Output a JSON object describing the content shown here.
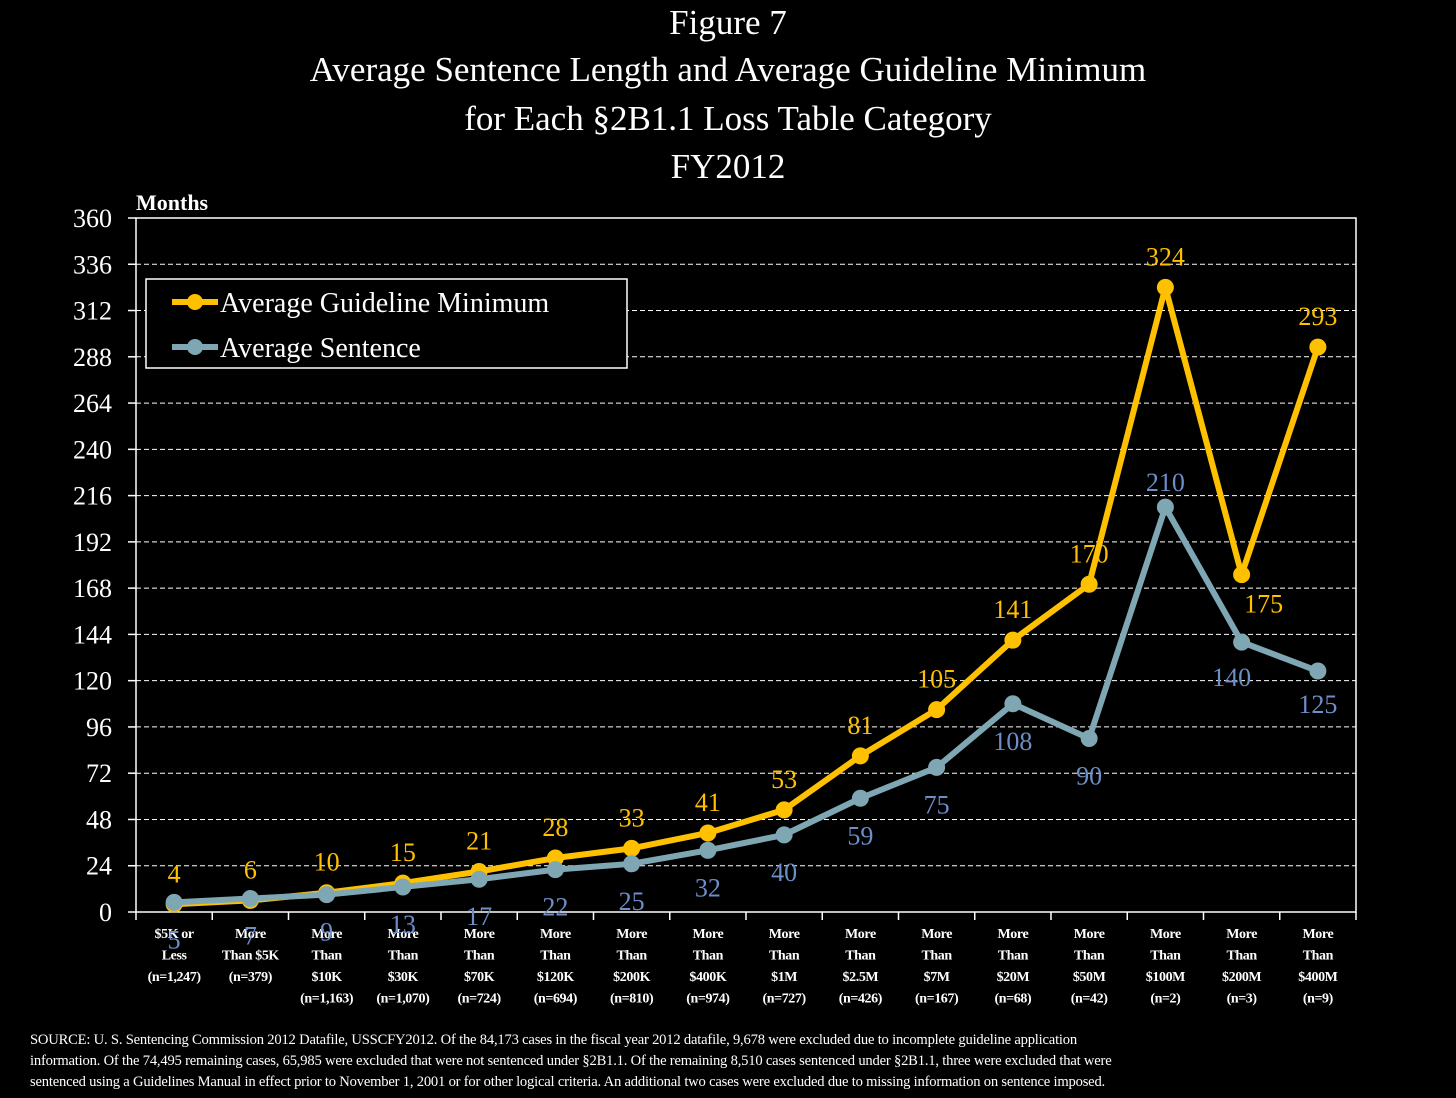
{
  "figure": {
    "title_lines": [
      "Figure 7",
      "Average Sentence Length and Average Guideline Minimum",
      "for Each §2B1.1 Loss Table Category",
      "FY2012"
    ],
    "source_lines": [
      "SOURCE:  U. S. Sentencing Commission 2012 Datafile, USSCFY2012.   Of the 84,173 cases in the fiscal year 2012 datafile, 9,678 were excluded due to incomplete guideline application",
      "information.  Of the 74,495 remaining cases, 65,985 were excluded that were not sentenced under §2B1.1.  Of the remaining 8,510 cases sentenced under §2B1.1, three were excluded that were",
      "sentenced using a Guidelines Manual in effect prior to November 1, 2001 or for other logical criteria.  An additional two cases were excluded due to missing information on sentence imposed."
    ]
  },
  "chart_data": {
    "type": "line",
    "title": "Average Sentence Length and Average Guideline Minimum for Each §2B1.1 Loss Table Category FY2012",
    "ylabel": "Months",
    "xlabel": "",
    "ylim": [
      0,
      360
    ],
    "yticks": [
      0,
      24,
      48,
      72,
      96,
      120,
      144,
      168,
      192,
      216,
      240,
      264,
      288,
      312,
      336,
      360
    ],
    "grid": "horizontal-dashed",
    "legend_position": "top-left",
    "categories": [
      [
        "$5K or",
        "Less",
        "(n=1,247)"
      ],
      [
        "More",
        "Than $5K",
        "(n=379)"
      ],
      [
        "More",
        "Than",
        "$10K",
        "(n=1,163)"
      ],
      [
        "More",
        "Than",
        "$30K",
        "(n=1,070)"
      ],
      [
        "More",
        "Than",
        "$70K",
        "(n=724)"
      ],
      [
        "More",
        "Than",
        "$120K",
        "(n=694)"
      ],
      [
        "More",
        "Than",
        "$200K",
        "(n=810)"
      ],
      [
        "More",
        "Than",
        "$400K",
        "(n=974)"
      ],
      [
        "More",
        "Than",
        "$1M",
        "(n=727)"
      ],
      [
        "More",
        "Than",
        "$2.5M",
        "(n=426)"
      ],
      [
        "More",
        "Than",
        "$7M",
        "(n=167)"
      ],
      [
        "More",
        "Than",
        "$20M",
        "(n=68)"
      ],
      [
        "More",
        "Than",
        "$50M",
        "(n=42)"
      ],
      [
        "More",
        "Than",
        "$100M",
        "(n=2)"
      ],
      [
        "More",
        "Than",
        "$200M",
        "(n=3)"
      ],
      [
        "More",
        "Than",
        "$400M",
        "(n=9)"
      ]
    ],
    "series": [
      {
        "name": "Average Guideline Minimum",
        "color": "#FFC000",
        "values": [
          4,
          6,
          10,
          15,
          21,
          28,
          33,
          41,
          53,
          81,
          105,
          141,
          170,
          324,
          175,
          293
        ],
        "label_position": "above"
      },
      {
        "name": "Average Sentence",
        "color": "#7FA7B3",
        "label_color": "#6C8EC9",
        "values": [
          5,
          7,
          9,
          13,
          17,
          22,
          25,
          32,
          40,
          59,
          75,
          108,
          90,
          210,
          140,
          125
        ],
        "label_position": "below"
      }
    ]
  }
}
